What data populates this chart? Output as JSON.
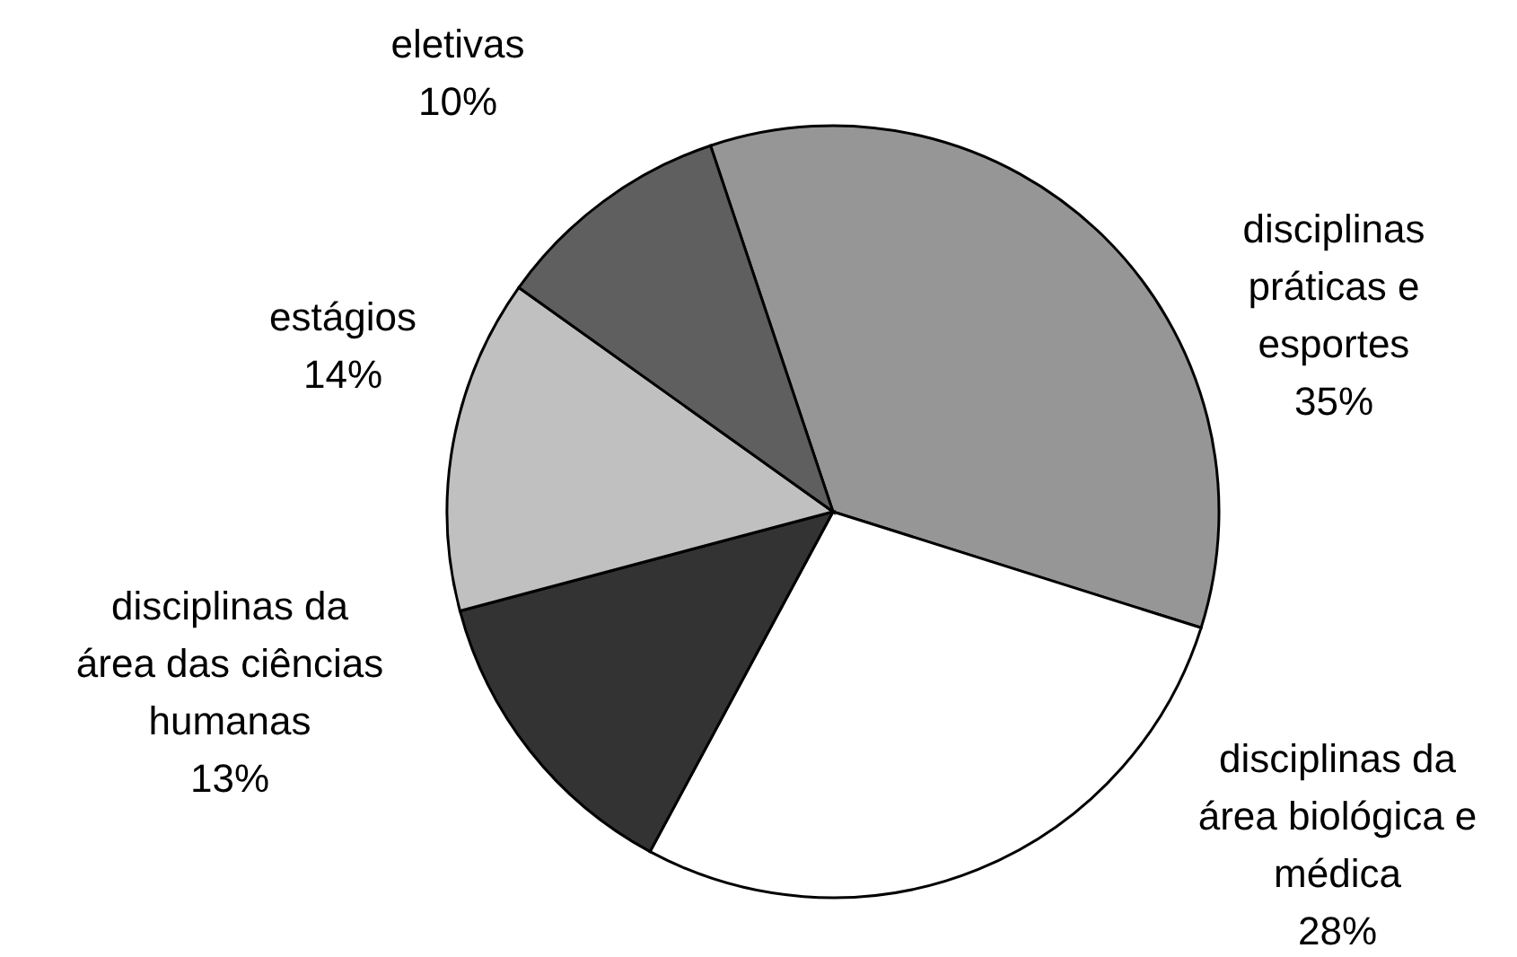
{
  "chart_data": {
    "type": "pie",
    "categories": [
      "disciplinas práticas e esportes",
      "disciplinas da área biológica e médica",
      "disciplinas da área das ciências humanas",
      "estágios",
      "eletivas"
    ],
    "values": [
      35,
      28,
      13,
      14,
      10
    ],
    "value_labels": [
      "35%",
      "28%",
      "13%",
      "14%",
      "10%"
    ],
    "colors": [
      "#969696",
      "#ffffff",
      "#333333",
      "#c0c0c0",
      "#5f5f5f"
    ],
    "legend": false
  }
}
